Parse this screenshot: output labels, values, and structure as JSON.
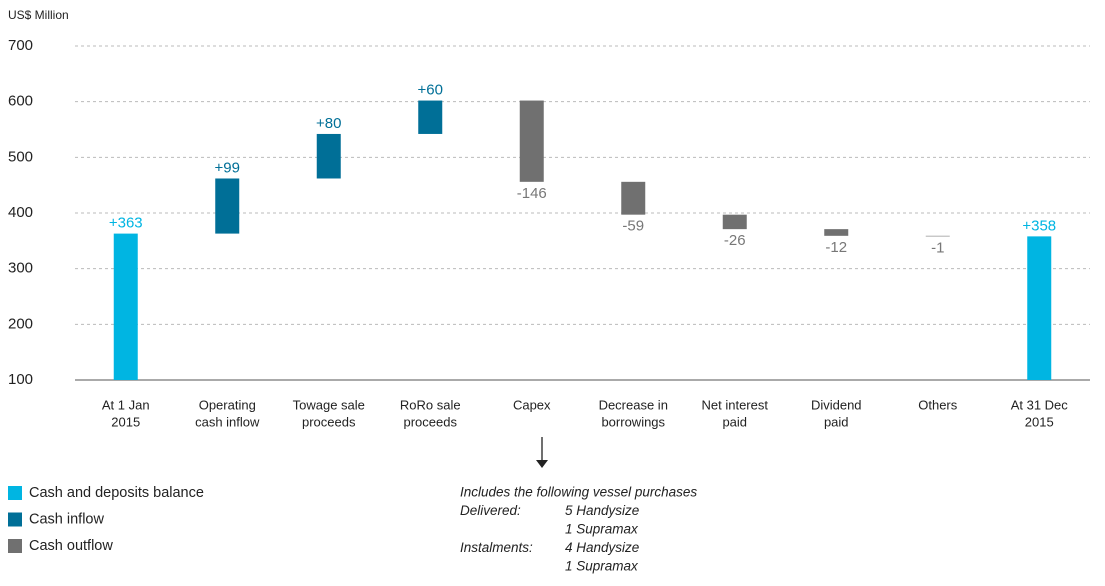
{
  "chart_data": {
    "type": "waterfall",
    "y_label": "US$ Million",
    "categories": [
      [
        "At 1 Jan",
        "2015"
      ],
      [
        "Operating",
        "cash inflow"
      ],
      [
        "Towage sale",
        "proceeds"
      ],
      [
        "RoRo sale",
        "proceeds"
      ],
      [
        "Capex"
      ],
      [
        "Decrease in",
        "borrowings"
      ],
      [
        "Net interest",
        "paid"
      ],
      [
        "Dividend",
        "paid"
      ],
      [
        "Others"
      ],
      [
        "At 31 Dec",
        "2015"
      ]
    ],
    "series": [
      {
        "name": "Cash and deposits balance",
        "color": "#00b5e2",
        "label_color": "#00b5e2",
        "balance": true,
        "values": [
          363,
          null,
          null,
          null,
          null,
          null,
          null,
          null,
          null,
          358
        ],
        "value_labels": [
          "+363",
          null,
          null,
          null,
          null,
          null,
          null,
          null,
          null,
          "+358"
        ]
      },
      {
        "name": "Cash inflow",
        "color": "#006f97",
        "label_color": "#006f97",
        "values": [
          null,
          99,
          80,
          60,
          null,
          null,
          null,
          null,
          null,
          null
        ],
        "value_labels": [
          null,
          "+99",
          "+80",
          "+60",
          null,
          null,
          null,
          null,
          null,
          null
        ]
      },
      {
        "name": "Cash outflow",
        "color": "#707070",
        "label_color": "#777777",
        "values": [
          null,
          null,
          null,
          null,
          -146,
          -59,
          -26,
          -12,
          -1,
          null
        ],
        "value_labels": [
          null,
          null,
          null,
          null,
          "-146",
          "-59",
          "-26",
          "-12",
          "-1",
          null
        ]
      }
    ],
    "ylim": [
      100,
      700
    ],
    "yticks": [
      100,
      200,
      300,
      400,
      500,
      600,
      700
    ],
    "grid": true,
    "annotation": {
      "title": "Includes the following vessel purchases",
      "rows": [
        {
          "label": "Delivered:",
          "items": [
            "5 Handysize",
            "1 Supramax"
          ]
        },
        {
          "label": "Instalments:",
          "items": [
            "4 Handysize",
            "1 Supramax"
          ]
        }
      ]
    }
  }
}
